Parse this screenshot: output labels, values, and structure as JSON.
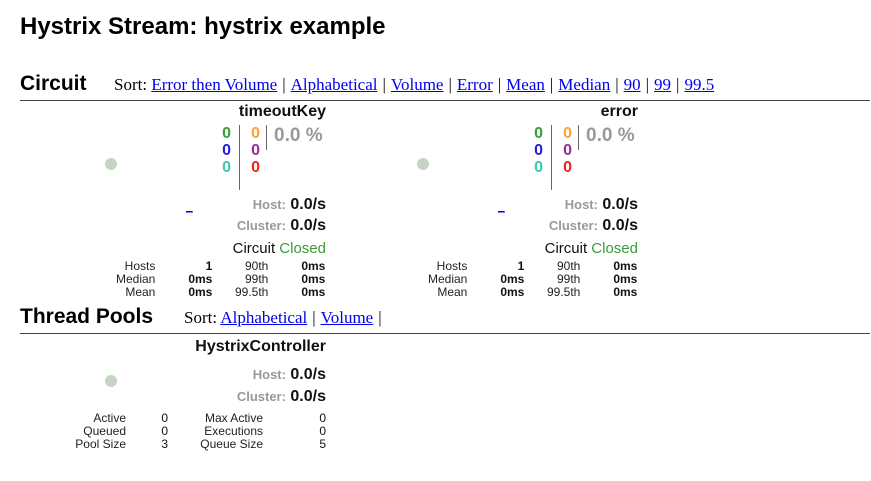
{
  "page": {
    "title": "Hystrix Stream: hystrix example"
  },
  "circuit_section": {
    "title": "Circuit",
    "sort_label": "Sort:",
    "sort_links": [
      "Error then Volume",
      "Alphabetical",
      "Volume",
      "Error",
      "Mean",
      "Median",
      "90",
      "99",
      "99.5"
    ]
  },
  "circuits": [
    {
      "name": "timeoutKey",
      "counts": {
        "success": "0",
        "short_circuited": "0",
        "bad_request": "0",
        "timeout": "0",
        "rejected": "0",
        "failure": "0"
      },
      "error_pct": "0.0 %",
      "link_text": "_",
      "host_label": "Host:",
      "host_rate": "0.0/s",
      "cluster_label": "Cluster:",
      "cluster_rate": "0.0/s",
      "circuit_label": "Circuit",
      "circuit_state": "Closed",
      "stats": {
        "hosts_label": "Hosts",
        "hosts": "1",
        "median_label": "Median",
        "median": "0ms",
        "mean_label": "Mean",
        "mean": "0ms",
        "p90_label": "90th",
        "p90": "0ms",
        "p99_label": "99th",
        "p99": "0ms",
        "p995_label": "99.5th",
        "p995": "0ms"
      },
      "colors": {
        "dot": "#c5d4c3",
        "closed": "#3c9c3c"
      }
    },
    {
      "name": "error",
      "counts": {
        "success": "0",
        "short_circuited": "0",
        "bad_request": "0",
        "timeout": "0",
        "rejected": "0",
        "failure": "0"
      },
      "error_pct": "0.0 %",
      "link_text": "_",
      "host_label": "Host:",
      "host_rate": "0.0/s",
      "cluster_label": "Cluster:",
      "cluster_rate": "0.0/s",
      "circuit_label": "Circuit",
      "circuit_state": "Closed",
      "stats": {
        "hosts_label": "Hosts",
        "hosts": "1",
        "median_label": "Median",
        "median": "0ms",
        "mean_label": "Mean",
        "mean": "0ms",
        "p90_label": "90th",
        "p90": "0ms",
        "p99_label": "99th",
        "p99": "0ms",
        "p995_label": "99.5th",
        "p995": "0ms"
      },
      "colors": {
        "dot": "#c5d4c3",
        "closed": "#3c9c3c"
      }
    }
  ],
  "thread_section": {
    "title": "Thread Pools",
    "sort_label": "Sort:",
    "sort_links": [
      "Alphabetical",
      "Volume"
    ]
  },
  "thread_pools": [
    {
      "name": "HystrixController",
      "host_label": "Host:",
      "host_rate": "0.0/s",
      "cluster_label": "Cluster:",
      "cluster_rate": "0.0/s",
      "stats": {
        "active_label": "Active",
        "active": "0",
        "queued_label": "Queued",
        "queued": "0",
        "pool_size_label": "Pool Size",
        "pool_size": "3",
        "max_active_label": "Max Active",
        "max_active": "0",
        "executions_label": "Executions",
        "executions": "0",
        "queue_size_label": "Queue Size",
        "queue_size": "5"
      }
    }
  ]
}
